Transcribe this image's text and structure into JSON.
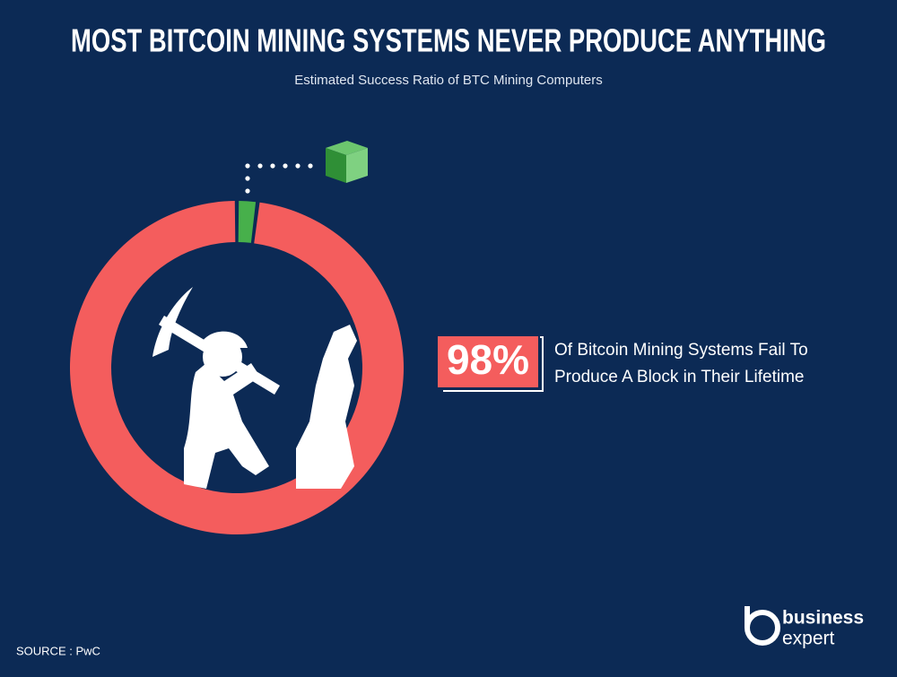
{
  "chart_data": {
    "type": "donut",
    "title": "MOST BITCOIN MINING SYSTEMS NEVER PRODUCE ANYTHING",
    "subtitle": "Estimated Success Ratio of BTC Mining Computers",
    "values": [
      98,
      2
    ],
    "value_labels": [
      "98%",
      null
    ],
    "colors": [
      "#f45d5d",
      "#47b04b"
    ],
    "annotation": [
      "Of Bitcoin Mining Systems Fail To",
      "Produce A Block in Their Lifetime"
    ],
    "source": "SOURCE : PwC",
    "brand": [
      "business",
      "expert"
    ]
  }
}
